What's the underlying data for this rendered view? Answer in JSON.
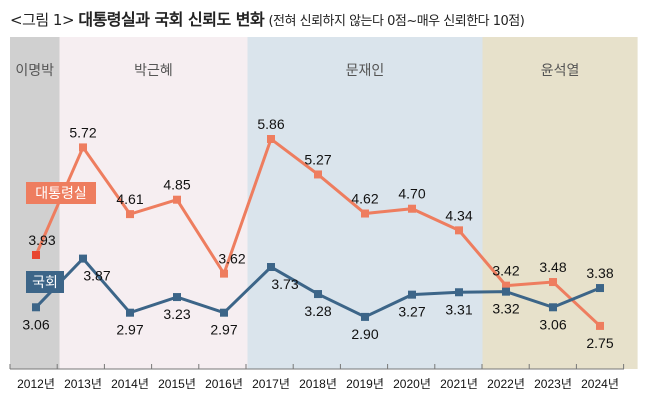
{
  "title": {
    "prefix": "<그림 1>",
    "main": "대통령실과 국회 신뢰도 변화",
    "sub": "(전혀 신뢰하지 않는다 0점~매우 신뢰한다 10점)"
  },
  "chart_data": {
    "type": "line",
    "title": "대통령실과 국회 신뢰도 변화",
    "subtitle": "(전혀 신뢰하지 않는다 0점~매우 신뢰한다 10점)",
    "xlabel": "",
    "ylabel": "",
    "categories": [
      "2012년",
      "2013년",
      "2014년",
      "2015년",
      "2016년",
      "2017년",
      "2018년",
      "2019년",
      "2020년",
      "2021년",
      "2022년",
      "2023년",
      "2024년"
    ],
    "series": [
      {
        "name": "대통령실",
        "color": "#ee7d5f",
        "values": [
          3.93,
          5.72,
          4.61,
          4.85,
          3.62,
          5.86,
          5.27,
          4.62,
          4.7,
          4.34,
          3.42,
          3.48,
          2.75
        ],
        "label_pos": [
          "above",
          "above",
          "above",
          "above",
          "above",
          "above",
          "above",
          "above",
          "above",
          "above",
          "above",
          "above",
          "below"
        ]
      },
      {
        "name": "국회",
        "color": "#3c6588",
        "values": [
          3.06,
          3.87,
          2.97,
          3.23,
          2.97,
          3.73,
          3.28,
          2.9,
          3.27,
          3.31,
          3.32,
          3.06,
          3.38
        ],
        "label_pos": [
          "below",
          "below",
          "below",
          "below",
          "below",
          "below",
          "below",
          "below",
          "below",
          "below",
          "below",
          "below",
          "above"
        ]
      }
    ],
    "periods": [
      {
        "name": "이명박",
        "start": 0,
        "end": 0.5,
        "color": "#d0d0d0"
      },
      {
        "name": "박근혜",
        "start": 0.5,
        "end": 4.5,
        "color": "#f6eef1"
      },
      {
        "name": "문재인",
        "start": 4.5,
        "end": 9.5,
        "color": "#dae4ec"
      },
      {
        "name": "윤석열",
        "start": 9.5,
        "end": 12.8,
        "color": "#e7e1cb"
      }
    ],
    "ylim": [
      2.0,
      6.5
    ],
    "grid": false,
    "legend": "inline-left"
  }
}
